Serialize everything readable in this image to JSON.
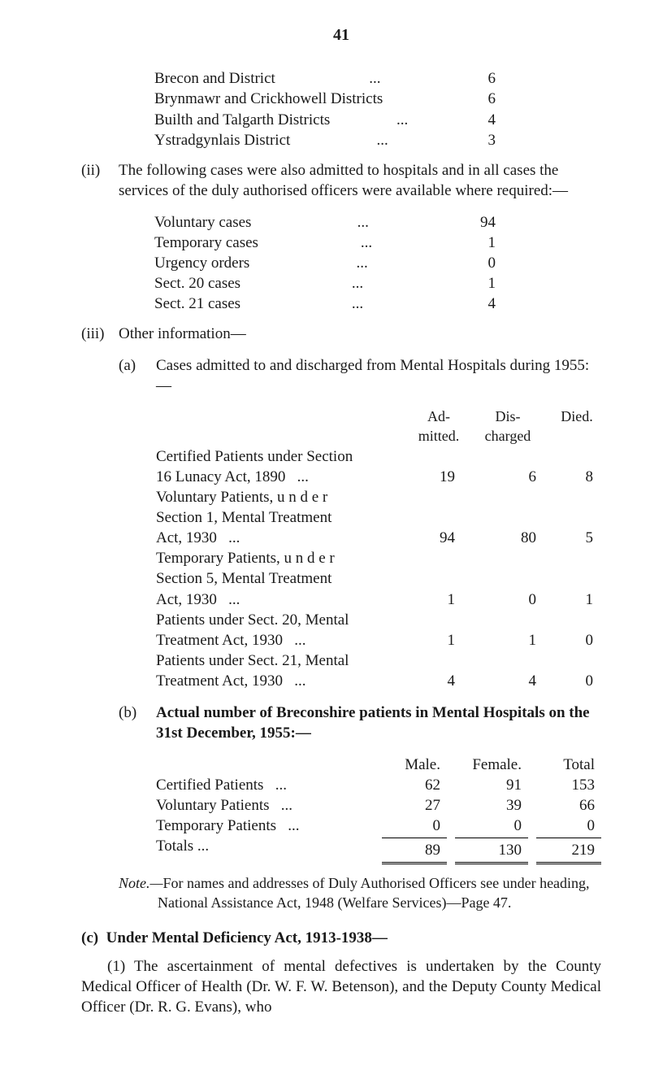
{
  "page_number": "41",
  "i_block": {
    "rows": [
      {
        "label": "Brecon and District",
        "dots": "...",
        "value": "6"
      },
      {
        "label": "Brynmawr and Crickhowell Districts",
        "dots": "",
        "value": "6"
      },
      {
        "label": "Builth and Talgarth Districts",
        "dots": "...",
        "value": "4"
      },
      {
        "label": "Ystradgynlais District",
        "dots": "...",
        "value": "3"
      }
    ]
  },
  "ii_block": {
    "marker": "(ii)",
    "intro": "The following cases were also admitted to hospitals and in all cases the services of the duly authorised officers were available where required:—",
    "rows": [
      {
        "label": "Voluntary cases",
        "dots": "...",
        "value": "94"
      },
      {
        "label": "Temporary cases",
        "dots": "...",
        "value": "1"
      },
      {
        "label": "Urgency orders",
        "dots": "...",
        "value": "0"
      },
      {
        "label": "Sect. 20 cases",
        "dots": "...",
        "value": "1"
      },
      {
        "label": "Sect. 21 cases",
        "dots": "...",
        "value": "4"
      }
    ]
  },
  "iii_block": {
    "marker": "(iii)",
    "title": "Other information—",
    "a": {
      "marker": "(a)",
      "text": "Cases admitted to and discharged from Mental Hospitals during 1955:—",
      "header": {
        "c2": "Ad-\nmitted.",
        "c3": "Dis-\ncharged",
        "c4": "Died."
      },
      "rows": [
        {
          "lines": [
            "Certified Patients under Section",
            "16 Lunacy Act, 1890"
          ],
          "vals": [
            "19",
            "6",
            "8"
          ]
        },
        {
          "lines": [
            "Voluntary    Patients,    u n d e r",
            "Section 1,  Mental  Treatment",
            "Act, 1930"
          ],
          "vals": [
            "94",
            "80",
            "5"
          ]
        },
        {
          "lines": [
            "Temporary   Patients,   u n d e r",
            "Section 5,  Mental  Treatment",
            "Act, 1930"
          ],
          "vals": [
            "1",
            "0",
            "1"
          ]
        },
        {
          "lines": [
            "Patients under Sect. 20, Mental",
            "Treatment Act, 1930"
          ],
          "vals": [
            "1",
            "1",
            "0"
          ]
        },
        {
          "lines": [
            "Patients under Sect. 21, Mental",
            "Treatment Act, 1930"
          ],
          "vals": [
            "4",
            "4",
            "0"
          ]
        }
      ]
    },
    "b": {
      "marker": "(b)",
      "title": "Actual number of Breconshire patients in Mental Hospitals on the 31st December, 1955:—",
      "header": {
        "c2": "Male.",
        "c3": "Female.",
        "c4": "Total"
      },
      "rows": [
        {
          "label": "Certified Patients",
          "vals": [
            "62",
            "91",
            "153"
          ]
        },
        {
          "label": "Voluntary Patients",
          "vals": [
            "27",
            "39",
            "66"
          ]
        },
        {
          "label": "Temporary Patients",
          "vals": [
            "0",
            "0",
            "0"
          ]
        }
      ],
      "totals": {
        "label": "Totals",
        "vals": [
          "89",
          "130",
          "219"
        ]
      }
    }
  },
  "note": {
    "prefix": "Note.—",
    "text": "For names and addresses of Duly Authorised Officers see under heading, National Assistance Act, 1948 (Welfare Services)—Page 47."
  },
  "c_block": {
    "marker": "(c)",
    "title": "Under Mental Deficiency Act, 1913-1938—",
    "para": "(1) The ascertainment of mental defectives is undertaken by the County Medical Officer of Health (Dr. W. F. W. Betenson), and the Deputy County Medical Officer (Dr. R. G. Evans), who"
  }
}
